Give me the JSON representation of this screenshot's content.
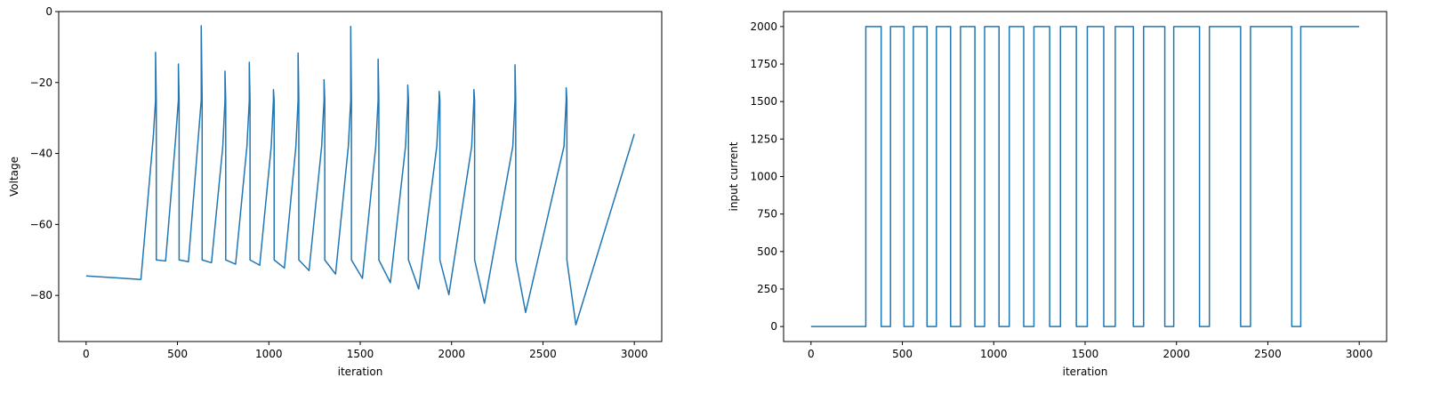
{
  "chart_data": [
    {
      "type": "line",
      "xlabel": "iteration",
      "ylabel": "Voltage",
      "xlim": [
        -150,
        3150
      ],
      "ylim": [
        -93,
        0
      ],
      "xticks": [
        0,
        500,
        1000,
        1500,
        2000,
        2500,
        3000
      ],
      "xtick_labels": [
        "0",
        "500",
        "1000",
        "1500",
        "2000",
        "2500",
        "3000"
      ],
      "yticks": [
        0,
        -20,
        -40,
        -60,
        -80
      ],
      "ytick_labels": [
        "0",
        "−20",
        "−40",
        "−60",
        "−80"
      ],
      "grid": false,
      "colors": {
        "series": "#1f77b4"
      },
      "series": [
        {
          "x": [
            0,
            300,
            368,
            380,
            380,
            384,
            384,
            435,
            488,
            505,
            505,
            509,
            509,
            560,
            610,
            630,
            630,
            635,
            635,
            686,
            748,
            760,
            760,
            764,
            764,
            818,
            880,
            893,
            893,
            897,
            897,
            950,
            1013,
            1025,
            1025,
            1029,
            1029,
            1085,
            1148,
            1160,
            1160,
            1164,
            1164,
            1220,
            1289,
            1302,
            1302,
            1306,
            1306,
            1365,
            1435,
            1448,
            1448,
            1452,
            1452,
            1512,
            1585,
            1598,
            1598,
            1602,
            1602,
            1665,
            1748,
            1760,
            1760,
            1764,
            1764,
            1820,
            1919,
            1932,
            1932,
            1936,
            1936,
            1985,
            2110,
            2122,
            2122,
            2126,
            2126,
            2180,
            2335,
            2347,
            2347,
            2351,
            2351,
            2405,
            2615,
            2627,
            2627,
            2631,
            2631,
            2680,
            3000
          ],
          "y": [
            -74.5,
            -75.5,
            -35,
            -25,
            -11.5,
            -25,
            -70,
            -70.3,
            -37,
            -25,
            -14.8,
            -25,
            -70,
            -70.5,
            -38,
            -25,
            -4,
            -25,
            -70,
            -70.8,
            -38,
            -25,
            -16.8,
            -25,
            -70,
            -71.2,
            -38,
            -25,
            -14.3,
            -25,
            -70,
            -71.5,
            -38,
            -25,
            -22,
            -25,
            -70,
            -72.3,
            -38,
            -25,
            -11.7,
            -25,
            -70,
            -73,
            -38,
            -25,
            -19.2,
            -25,
            -70,
            -74,
            -38,
            -25,
            -4.2,
            -25,
            -70,
            -75.2,
            -38,
            -25,
            -13.4,
            -25,
            -70,
            -76.4,
            -38,
            -25,
            -20.7,
            -25,
            -70,
            -78.2,
            -38,
            -25,
            -22.5,
            -25,
            -70,
            -79.8,
            -38,
            -25,
            -22,
            -25,
            -70,
            -82.2,
            -38,
            -25,
            -15,
            -25,
            -70,
            -84.8,
            -38,
            -25,
            -21.5,
            -25,
            -70,
            -88.3,
            -34.5
          ]
        }
      ]
    },
    {
      "type": "line",
      "xlabel": "iteration",
      "ylabel": "input current",
      "xlim": [
        -150,
        3150
      ],
      "ylim": [
        -100,
        2100
      ],
      "xticks": [
        0,
        500,
        1000,
        1500,
        2000,
        2500,
        3000
      ],
      "xtick_labels": [
        "0",
        "500",
        "1000",
        "1500",
        "2000",
        "2500",
        "3000"
      ],
      "yticks": [
        0,
        250,
        500,
        750,
        1000,
        1250,
        1500,
        1750,
        2000
      ],
      "ytick_labels": [
        "0",
        "250",
        "500",
        "750",
        "1000",
        "1250",
        "1500",
        "1750",
        "2000"
      ],
      "grid": false,
      "colors": {
        "series": "#1f77b4"
      },
      "series": [
        {
          "x": [
            0,
            300,
            300,
            384,
            384,
            435,
            435,
            509,
            509,
            560,
            560,
            635,
            635,
            686,
            686,
            764,
            764,
            818,
            818,
            897,
            897,
            950,
            950,
            1029,
            1029,
            1085,
            1085,
            1164,
            1164,
            1220,
            1220,
            1306,
            1306,
            1365,
            1365,
            1452,
            1452,
            1512,
            1512,
            1602,
            1602,
            1665,
            1665,
            1764,
            1764,
            1820,
            1820,
            1936,
            1936,
            1985,
            1985,
            2126,
            2126,
            2180,
            2180,
            2351,
            2351,
            2405,
            2405,
            2631,
            2631,
            2680,
            2680,
            3000
          ],
          "y": [
            0,
            0,
            2000,
            2000,
            0,
            0,
            2000,
            2000,
            0,
            0,
            2000,
            2000,
            0,
            0,
            2000,
            2000,
            0,
            0,
            2000,
            2000,
            0,
            0,
            2000,
            2000,
            0,
            0,
            2000,
            2000,
            0,
            0,
            2000,
            2000,
            0,
            0,
            2000,
            2000,
            0,
            0,
            2000,
            2000,
            0,
            0,
            2000,
            2000,
            0,
            0,
            2000,
            2000,
            0,
            0,
            2000,
            2000,
            0,
            0,
            2000,
            2000,
            0,
            0,
            2000,
            2000,
            0,
            0,
            2000,
            2000
          ]
        }
      ]
    }
  ]
}
